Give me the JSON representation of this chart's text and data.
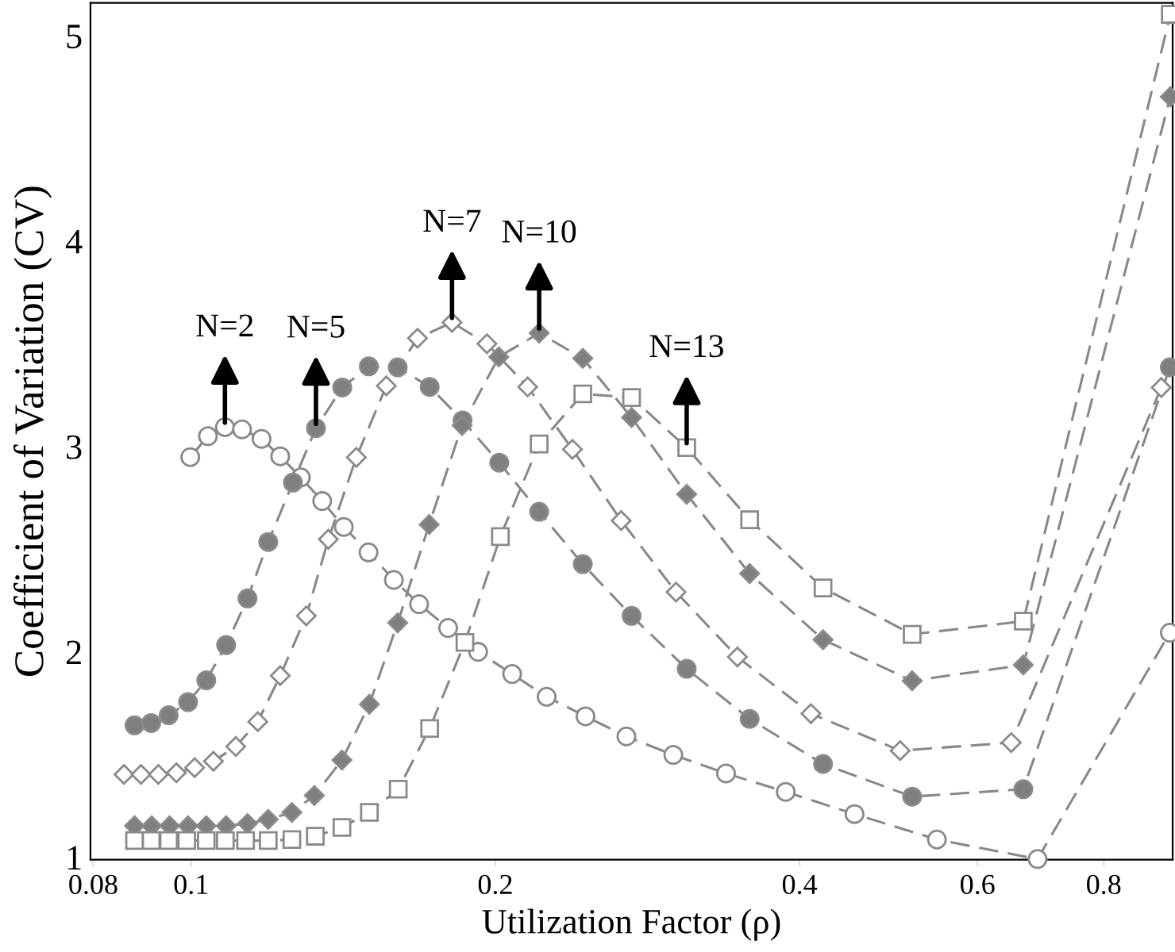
{
  "chart_data": {
    "type": "line",
    "xlabel": "Utilization Factor (ρ)",
    "ylabel": "Coefficient of Variation (CV)",
    "log": "x",
    "xlim": [
      0.0795,
      0.936
    ],
    "xticks": [
      0.08,
      0.1,
      0.2,
      0.4,
      0.6,
      0.8
    ],
    "ylim": [
      0.988,
      5.16
    ],
    "yticks": [
      1,
      2,
      3,
      4,
      5
    ],
    "grid": false,
    "line_style": "dashed",
    "series": [
      {
        "color": "#ffffff",
        "marker": "circle",
        "x": [
          0.0998,
          0.1039,
          0.108,
          0.1123,
          0.1174,
          0.1225,
          0.1284,
          0.1348,
          0.1416,
          0.1498,
          0.1587,
          0.1681,
          0.1796,
          0.1923,
          0.2078,
          0.2248,
          0.2456,
          0.2696,
          0.3,
          0.3383,
          0.3876,
          0.4534,
          0.547,
          0.688,
          0.93
        ],
        "values": [
          2.948,
          3.05,
          3.094,
          3.083,
          3.037,
          2.952,
          2.849,
          2.734,
          2.608,
          2.484,
          2.35,
          2.232,
          2.116,
          2.0,
          1.892,
          1.781,
          1.686,
          1.588,
          1.498,
          1.408,
          1.318,
          1.21,
          1.086,
          0.991,
          2.093
        ]
      },
      {
        "color": "#7f7f7f",
        "marker": "circle",
        "x": [
          0.0879,
          0.0913,
          0.095,
          0.0993,
          0.1035,
          0.1083,
          0.1137,
          0.1192,
          0.1261,
          0.1329,
          0.1411,
          0.1499,
          0.1601,
          0.1722,
          0.1856,
          0.2018,
          0.221,
          0.2441,
          0.2728,
          0.3093,
          0.357,
          0.422,
          0.517,
          0.666,
          0.93
        ],
        "values": [
          1.642,
          1.653,
          1.691,
          1.755,
          1.861,
          2.033,
          2.26,
          2.535,
          2.824,
          3.089,
          3.287,
          3.39,
          3.385,
          3.29,
          3.127,
          2.921,
          2.682,
          2.427,
          2.175,
          1.917,
          1.673,
          1.454,
          1.295,
          1.331,
          3.385
        ]
      },
      {
        "color": "#ffffff",
        "marker": "diamond",
        "x": [
          0.0858,
          0.0892,
          0.0928,
          0.0967,
          0.1008,
          0.1052,
          0.1107,
          0.1164,
          0.1225,
          0.13,
          0.1367,
          0.1457,
          0.156,
          0.1675,
          0.1812,
          0.1962,
          0.2153,
          0.2384,
          0.2664,
          0.3019,
          0.3472,
          0.4105,
          0.503,
          0.648,
          0.912
        ],
        "values": [
          1.403,
          1.403,
          1.403,
          1.411,
          1.436,
          1.467,
          1.539,
          1.66,
          1.884,
          2.175,
          2.548,
          2.947,
          3.295,
          3.527,
          3.604,
          3.5,
          3.29,
          2.986,
          2.639,
          2.291,
          1.975,
          1.699,
          1.519,
          1.558,
          3.287
        ]
      },
      {
        "color": "#7f7f7f",
        "marker": "diamond",
        "x": [
          0.0879,
          0.0914,
          0.0952,
          0.0993,
          0.1035,
          0.1083,
          0.1137,
          0.1192,
          0.1258,
          0.1324,
          0.141,
          0.1501,
          0.1601,
          0.172,
          0.1854,
          0.2016,
          0.221,
          0.2441,
          0.2728,
          0.3093,
          0.357,
          0.422,
          0.517,
          0.666,
          0.931
        ],
        "values": [
          1.153,
          1.153,
          1.153,
          1.153,
          1.153,
          1.153,
          1.164,
          1.184,
          1.218,
          1.3,
          1.473,
          1.745,
          2.141,
          2.62,
          3.102,
          3.436,
          3.552,
          3.429,
          3.141,
          2.767,
          2.381,
          2.059,
          1.859,
          1.936,
          4.703
        ]
      },
      {
        "color": "#ffffff",
        "marker": "square",
        "x": [
          0.0879,
          0.0913,
          0.095,
          0.099,
          0.1035,
          0.1081,
          0.1132,
          0.1192,
          0.1258,
          0.1327,
          0.141,
          0.1501,
          0.1603,
          0.1722,
          0.1866,
          0.2023,
          0.221,
          0.2441,
          0.2728,
          0.3093,
          0.357,
          0.422,
          0.517,
          0.666,
          0.931
        ],
        "values": [
          1.081,
          1.081,
          1.081,
          1.081,
          1.081,
          1.081,
          1.081,
          1.081,
          1.086,
          1.102,
          1.145,
          1.218,
          1.331,
          1.627,
          2.046,
          2.561,
          3.012,
          3.256,
          3.238,
          2.994,
          2.643,
          2.311,
          2.085,
          2.149,
          5.104
        ]
      }
    ],
    "annotations": [
      {
        "text": "N=2",
        "x": 0.108,
        "y": 3.094
      },
      {
        "text": "N=5",
        "x": 0.1329,
        "y": 3.089
      },
      {
        "text": "N=7",
        "x": 0.1812,
        "y": 3.604
      },
      {
        "text": "N=10",
        "x": 0.221,
        "y": 3.552
      },
      {
        "text": "N=13",
        "x": 0.3093,
        "y": 2.994
      }
    ]
  }
}
